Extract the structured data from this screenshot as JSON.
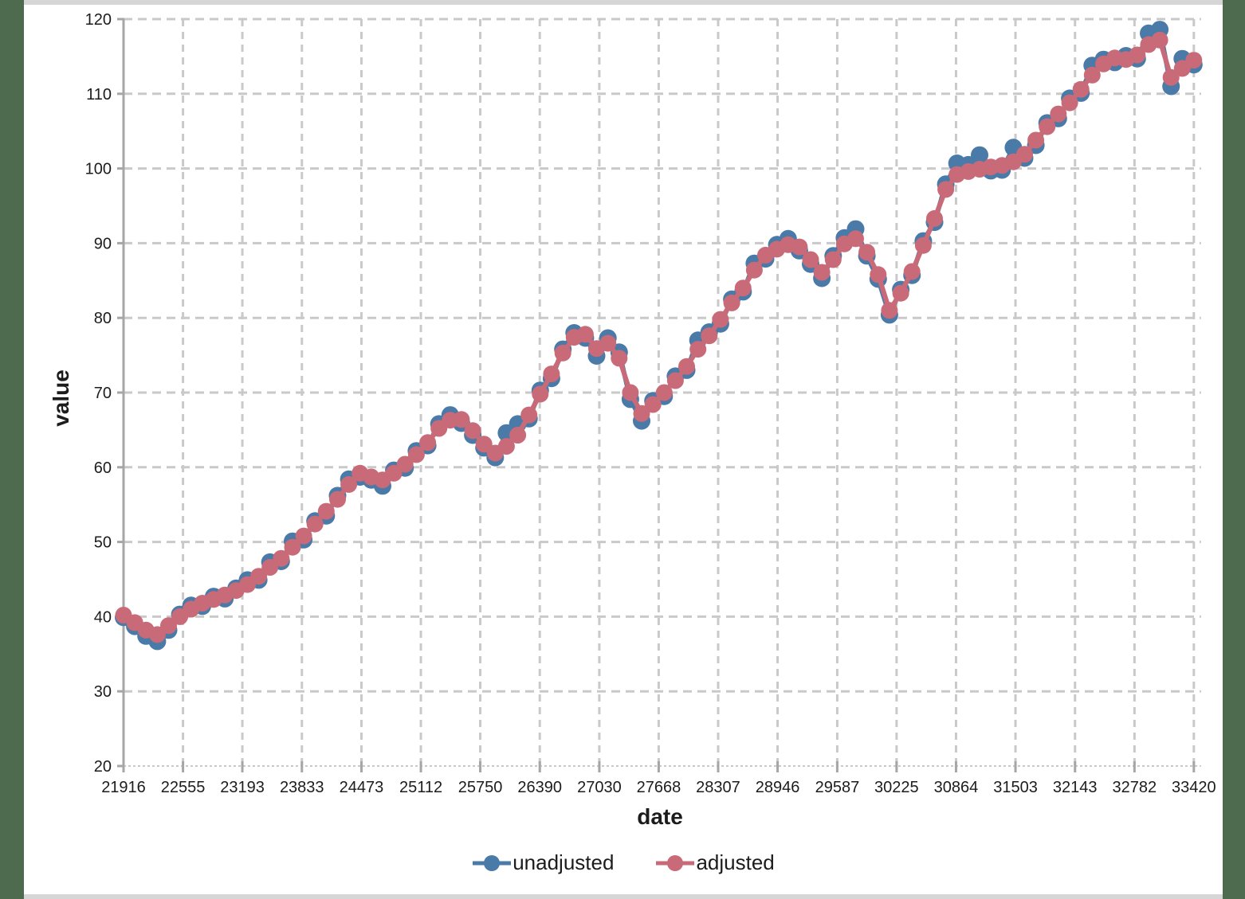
{
  "frame": {
    "background": "#ffffff",
    "desktop_edge_color": "#4e6b4f",
    "edge_strip_color": "#d6d6d6"
  },
  "chart_data": {
    "type": "line",
    "title": "",
    "xlabel": "date",
    "ylabel": "value",
    "xlim": [
      21916,
      33420
    ],
    "ylim": [
      20,
      120
    ],
    "grid": true,
    "gridline_color": "#c9c9c9",
    "axis_line_color": "#a6a6a6",
    "tick_label_color": "#1c1c1c",
    "legend_position": "bottom",
    "x_ticks": [
      21916,
      22555,
      23193,
      23833,
      24473,
      25112,
      25750,
      26390,
      27030,
      27668,
      28307,
      28946,
      29587,
      30225,
      30864,
      31503,
      32143,
      32782,
      33420
    ],
    "y_ticks": [
      20,
      30,
      40,
      50,
      60,
      70,
      80,
      90,
      100,
      110,
      120
    ],
    "x": [
      21916,
      22037,
      22158,
      22279,
      22400,
      22521,
      22642,
      22763,
      22884,
      23005,
      23126,
      23248,
      23369,
      23490,
      23611,
      23732,
      23853,
      23974,
      24095,
      24216,
      24337,
      24458,
      24579,
      24700,
      24821,
      24942,
      25064,
      25185,
      25306,
      25427,
      25548,
      25669,
      25790,
      25911,
      26032,
      26153,
      26274,
      26395,
      26516,
      26638,
      26759,
      26880,
      27001,
      27122,
      27243,
      27364,
      27485,
      27606,
      27727,
      27848,
      27969,
      28090,
      28211,
      28332,
      28454,
      28575,
      28696,
      28817,
      28938,
      29059,
      29180,
      29301,
      29422,
      29543,
      29664,
      29785,
      29906,
      30027,
      30148,
      30270,
      30391,
      30512,
      30633,
      30754,
      30875,
      30996,
      31117,
      31238,
      31359,
      31480,
      31601,
      31722,
      31843,
      31964,
      32086,
      32207,
      32328,
      32449,
      32570,
      32691,
      32812,
      32933,
      33054,
      33175,
      33296,
      33420
    ],
    "series": [
      {
        "name": "unadjusted",
        "color": "#4a7aa7",
        "values": [
          39.9,
          38.7,
          37.4,
          36.7,
          38.2,
          40.3,
          41.5,
          41.4,
          42.7,
          42.4,
          43.8,
          44.9,
          44.9,
          47.3,
          47.4,
          50.1,
          50.3,
          52.8,
          53.5,
          56.2,
          58.4,
          58.7,
          58.3,
          57.5,
          59.6,
          59.9,
          62.2,
          62.9,
          65.8,
          67.0,
          65.9,
          64.3,
          62.6,
          61.3,
          64.6,
          65.8,
          66.5,
          70.3,
          71.9,
          75.8,
          78.0,
          77.3,
          74.9,
          77.3,
          75.4,
          69.1,
          66.2,
          68.9,
          69.5,
          72.2,
          73.0,
          77.0,
          78.1,
          79.2,
          82.5,
          83.5,
          87.3,
          87.9,
          89.8,
          90.6,
          89.0,
          87.2,
          85.3,
          88.3,
          90.7,
          91.9,
          88.3,
          85.2,
          80.4,
          83.8,
          85.7,
          90.3,
          92.8,
          97.9,
          100.7,
          100.5,
          101.8,
          99.7,
          99.8,
          102.8,
          101.4,
          103.1,
          106.1,
          106.7,
          109.4,
          110.1,
          113.8,
          114.6,
          114.2,
          115.1,
          114.7,
          118.1,
          118.6,
          111.0,
          114.7,
          113.9
        ]
      },
      {
        "name": "adjusted",
        "color": "#c96a78",
        "values": [
          40.2,
          39.2,
          38.2,
          37.6,
          38.8,
          40.0,
          41.0,
          41.8,
          42.3,
          42.9,
          43.5,
          44.3,
          45.4,
          46.6,
          47.8,
          49.3,
          50.8,
          52.4,
          54.1,
          55.7,
          57.7,
          59.2,
          58.7,
          58.3,
          59.2,
          60.4,
          61.7,
          63.3,
          65.2,
          66.3,
          66.4,
          64.9,
          63.1,
          61.9,
          62.8,
          64.3,
          67.0,
          69.8,
          72.5,
          75.3,
          77.4,
          77.8,
          75.9,
          76.6,
          74.6,
          70.0,
          67.2,
          68.4,
          70.0,
          71.6,
          73.5,
          75.8,
          77.6,
          79.8,
          82.0,
          84.0,
          86.4,
          88.4,
          89.2,
          89.8,
          89.5,
          87.8,
          86.1,
          87.8,
          89.9,
          90.6,
          88.8,
          85.8,
          81.0,
          83.3,
          86.2,
          89.7,
          93.3,
          97.2,
          99.2,
          99.6,
          99.9,
          100.2,
          100.4,
          100.9,
          101.9,
          103.8,
          105.6,
          107.3,
          108.8,
          110.6,
          112.5,
          114.0,
          114.8,
          114.6,
          115.2,
          116.6,
          117.2,
          112.2,
          113.4,
          114.5
        ]
      }
    ]
  }
}
